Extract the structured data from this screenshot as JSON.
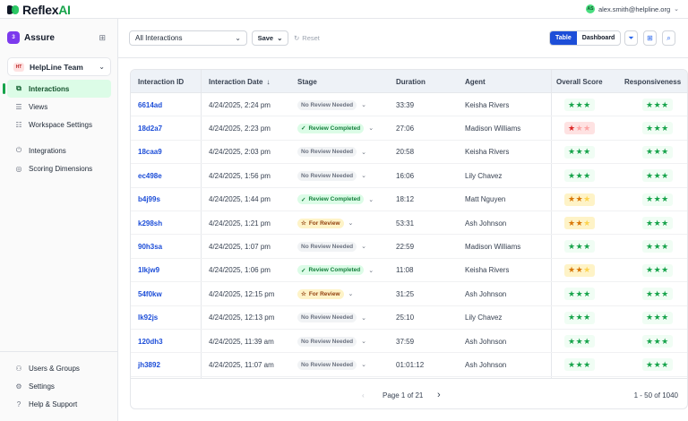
{
  "brand": {
    "name": "Reflex",
    "accent": "AI"
  },
  "user": {
    "initials": "AS",
    "email": "alex.smith@helpline.org"
  },
  "sidebar": {
    "app": {
      "badge": "3",
      "name": "Assure"
    },
    "team": {
      "badge": "HT",
      "name": "HelpLine Team"
    },
    "items": [
      {
        "label": "Interactions",
        "icon": "interactions-icon",
        "active": true
      },
      {
        "label": "Views",
        "icon": "views-icon"
      },
      {
        "label": "Workspace Settings",
        "icon": "sliders-icon"
      },
      {
        "label": "Integrations",
        "icon": "plug-icon"
      },
      {
        "label": "Scoring Dimensions",
        "icon": "target-icon"
      }
    ],
    "bottom": [
      {
        "label": "Users & Groups",
        "icon": "users-icon"
      },
      {
        "label": "Settings",
        "icon": "gear-icon"
      },
      {
        "label": "Help & Support",
        "icon": "help-icon"
      }
    ]
  },
  "toolbar": {
    "view_select": "All Interactions",
    "save": "Save",
    "reset": "Reset",
    "table": "Table",
    "dashboard": "Dashboard"
  },
  "table": {
    "columns": [
      "Interaction ID",
      "Interaction Date",
      "Stage",
      "Duration",
      "Agent",
      "Overall Score",
      "Responsiveness"
    ],
    "rows": [
      {
        "id": "6614ad",
        "date": "4/24/2025, 2:24 pm",
        "stage": "No Review Needed",
        "stage_type": "none",
        "duration": "33:39",
        "agent": "Keisha Rivers",
        "overall": 3,
        "resp": 3
      },
      {
        "id": "18d2a7",
        "date": "4/24/2025, 2:23 pm",
        "stage": "Review Completed",
        "stage_type": "done",
        "duration": "27:06",
        "agent": "Madison Williams",
        "overall": 1,
        "resp": 3
      },
      {
        "id": "18caa9",
        "date": "4/24/2025, 2:03 pm",
        "stage": "No Review Needed",
        "stage_type": "none",
        "duration": "20:58",
        "agent": "Keisha Rivers",
        "overall": 3,
        "resp": 3
      },
      {
        "id": "ec498e",
        "date": "4/24/2025, 1:56 pm",
        "stage": "No Review Needed",
        "stage_type": "none",
        "duration": "16:06",
        "agent": "Lily Chavez",
        "overall": 3,
        "resp": 3
      },
      {
        "id": "b4j99s",
        "date": "4/24/2025, 1:44 pm",
        "stage": "Review Completed",
        "stage_type": "done",
        "duration": "18:12",
        "agent": "Matt Nguyen",
        "overall": 2,
        "resp": 3
      },
      {
        "id": "k298sh",
        "date": "4/24/2025, 1:21 pm",
        "stage": "For Review",
        "stage_type": "review",
        "duration": "53:31",
        "agent": "Ash Johnson",
        "overall": 2,
        "resp": 3
      },
      {
        "id": "90h3sa",
        "date": "4/24/2025, 1:07 pm",
        "stage": "No Review Needed",
        "stage_type": "none",
        "duration": "22:59",
        "agent": "Madison Williams",
        "overall": 3,
        "resp": 3
      },
      {
        "id": "1lkjw9",
        "date": "4/24/2025, 1:06 pm",
        "stage": "Review Completed",
        "stage_type": "done",
        "duration": "11:08",
        "agent": "Keisha Rivers",
        "overall": 2,
        "resp": 3
      },
      {
        "id": "54f0kw",
        "date": "4/24/2025, 12:15 pm",
        "stage": "For Review",
        "stage_type": "review",
        "duration": "31:25",
        "agent": "Ash Johnson",
        "overall": 3,
        "resp": 3
      },
      {
        "id": "lk92js",
        "date": "4/24/2025, 12:13 pm",
        "stage": "No Review Needed",
        "stage_type": "none",
        "duration": "25:10",
        "agent": "Lily Chavez",
        "overall": 3,
        "resp": 3
      },
      {
        "id": "120dh3",
        "date": "4/24/2025, 11:39 am",
        "stage": "No Review Needed",
        "stage_type": "none",
        "duration": "37:59",
        "agent": "Ash Johnson",
        "overall": 3,
        "resp": 3
      },
      {
        "id": "jh3892",
        "date": "4/24/2025, 11:07 am",
        "stage": "No Review Needed",
        "stage_type": "none",
        "duration": "01:01:12",
        "agent": "Ash Johnson",
        "overall": 3,
        "resp": 3
      }
    ],
    "pagination": {
      "page": "Page 1 of 21",
      "range": "1 - 50 of 1040"
    }
  },
  "colors": {
    "primary": "#1d4ed8",
    "green": "#16a34a",
    "red": "#dc2626",
    "amber": "#d97706"
  }
}
